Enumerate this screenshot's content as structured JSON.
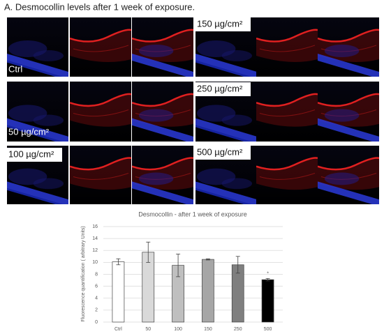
{
  "figure": {
    "title": "A. Desmocollin levels after 1 week of exposure.",
    "panels": [
      {
        "label": "Ctrl"
      },
      {
        "label": "150 µg/cm²"
      },
      {
        "label": "50 µg/cm²"
      },
      {
        "label": "250 µg/cm²"
      },
      {
        "label": "100 µg/cm²"
      },
      {
        "label": "500 µg/cm²"
      }
    ]
  },
  "chart_data": {
    "type": "bar",
    "title": "Desmocollin - after 1 week of exposure",
    "y_label": "Fluorescence quantification ( arbitrary Units)",
    "categories": [
      "Ctrl",
      "50",
      "100",
      "150",
      "250",
      "500"
    ],
    "values": [
      10.1,
      11.7,
      9.5,
      10.5,
      9.6,
      7.1
    ],
    "errors": [
      0.5,
      1.7,
      1.9,
      0.1,
      1.4,
      0.2
    ],
    "colors": [
      "#ffffff",
      "#d9d9d9",
      "#bfbfbf",
      "#a6a6a6",
      "#7f7f7f",
      "#000000"
    ],
    "ylim": [
      0,
      16
    ],
    "yticks": [
      0,
      2,
      4,
      6,
      8,
      10,
      12,
      14,
      16
    ],
    "grid": true,
    "annotations": [
      {
        "text": "*",
        "category": "500"
      }
    ]
  }
}
